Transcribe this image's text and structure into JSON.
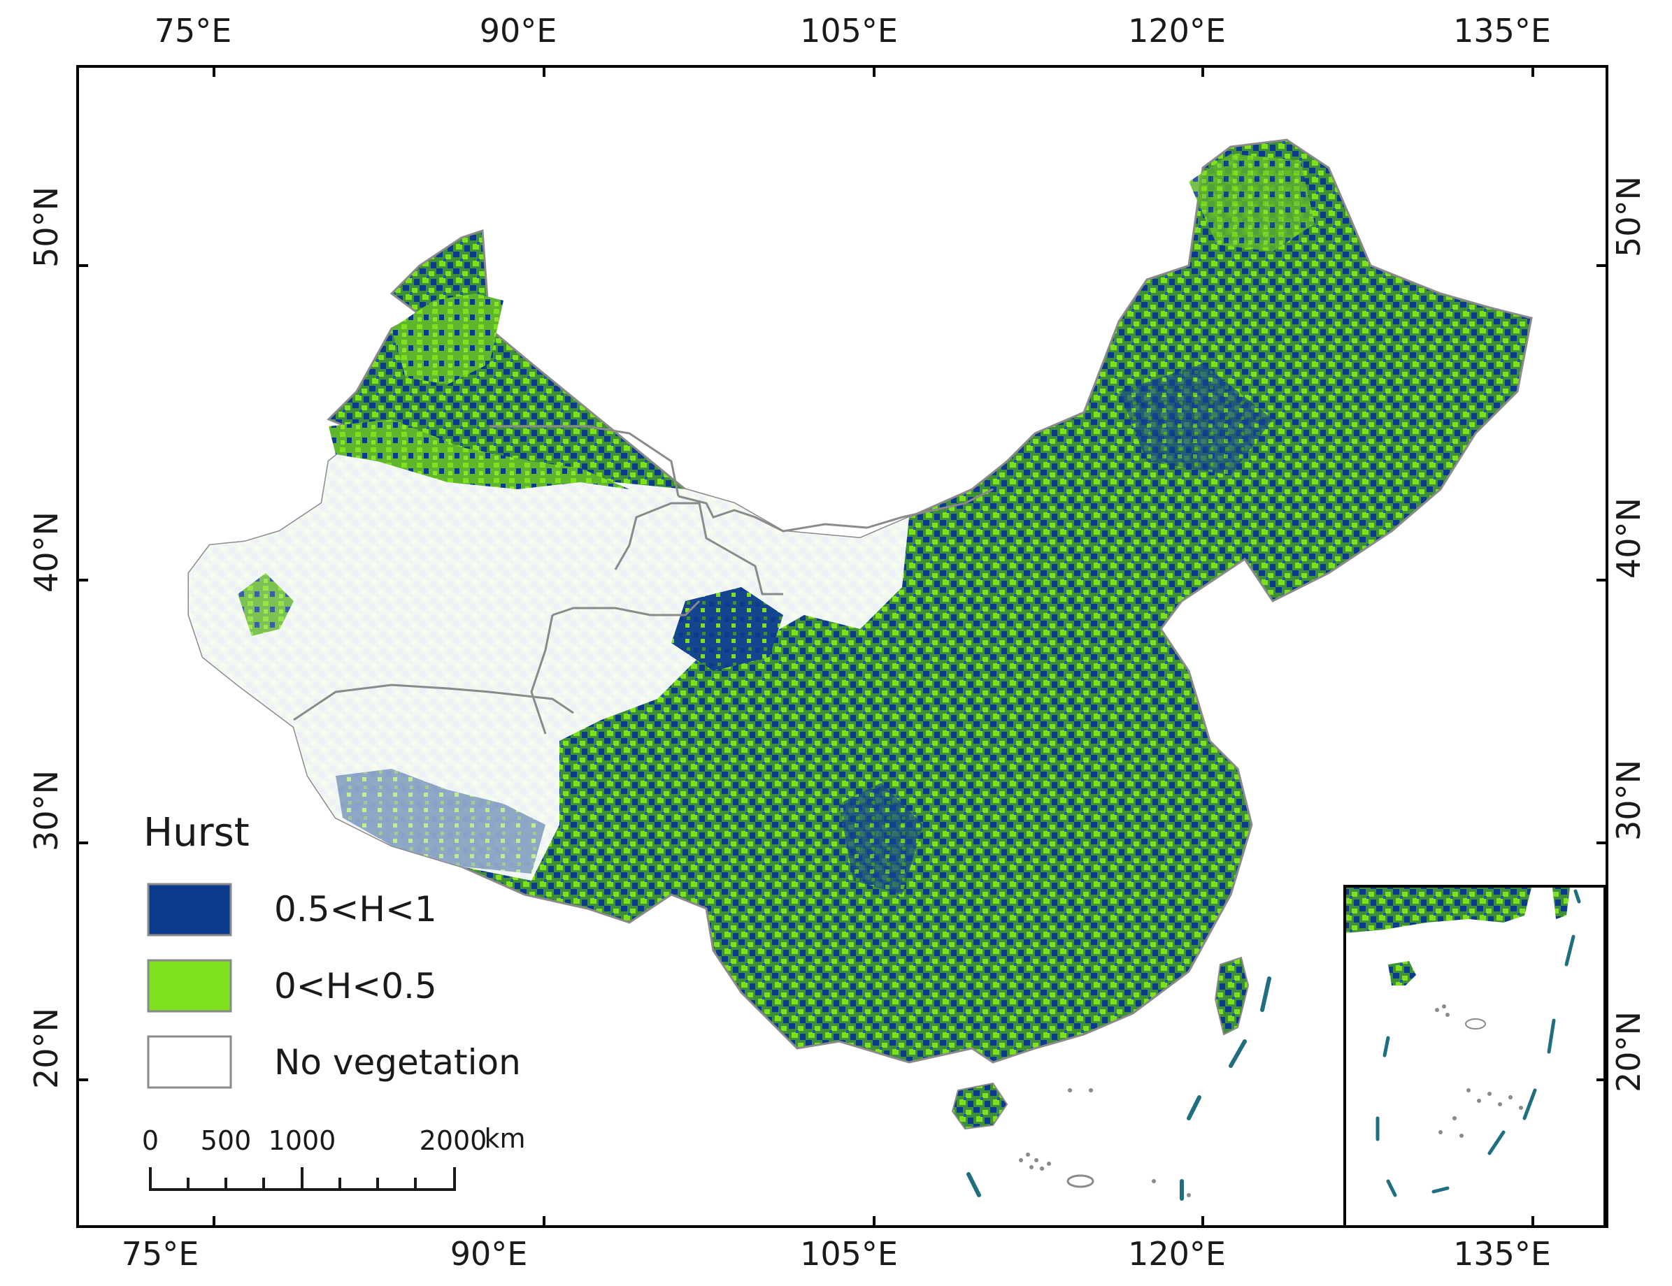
{
  "map": {
    "longitude_ticks": [
      "75°E",
      "90°E",
      "105°E",
      "120°E",
      "135°E"
    ],
    "latitude_ticks": [
      "50°N",
      "40°N",
      "30°N",
      "20°N"
    ]
  },
  "legend": {
    "title": "Hurst",
    "items": [
      {
        "label": "0.5<H<1",
        "color": "#0d3b8c"
      },
      {
        "label": "0<H<0.5",
        "color": "#7fe01e"
      },
      {
        "label": "No vegetation",
        "color": "#ffffff"
      }
    ]
  },
  "scale_bar": {
    "labels": [
      "0",
      "500",
      "1000",
      "2000"
    ],
    "unit": "km"
  },
  "colors": {
    "frame": "#000000",
    "boundary": "#8a8a8a",
    "mixed_vegetation": "#3f8f3a",
    "nine_dash_line": "#1f6f80"
  }
}
